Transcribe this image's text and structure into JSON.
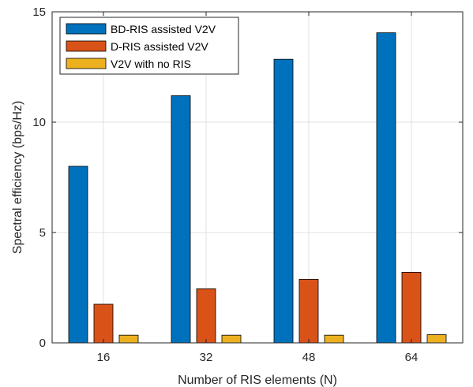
{
  "chart_data": {
    "type": "bar",
    "categories": [
      "16",
      "32",
      "48",
      "64"
    ],
    "series": [
      {
        "name": "BD-RIS assisted V2V",
        "values": [
          8.0,
          11.2,
          12.85,
          14.05
        ],
        "color": "#0072BD"
      },
      {
        "name": "D-RIS assisted V2V",
        "values": [
          1.75,
          2.45,
          2.88,
          3.2
        ],
        "color": "#D95319"
      },
      {
        "name": "V2V with no RIS",
        "values": [
          0.35,
          0.35,
          0.35,
          0.37
        ],
        "color": "#EDB120"
      }
    ],
    "title": "",
    "xlabel": "Number of RIS elements (N)",
    "ylabel": "Spectral efficiency (bps/Hz)",
    "ylim": [
      0,
      15
    ],
    "yticks": [
      0,
      5,
      10,
      15
    ],
    "grid": true,
    "legend_position": "top-left"
  }
}
